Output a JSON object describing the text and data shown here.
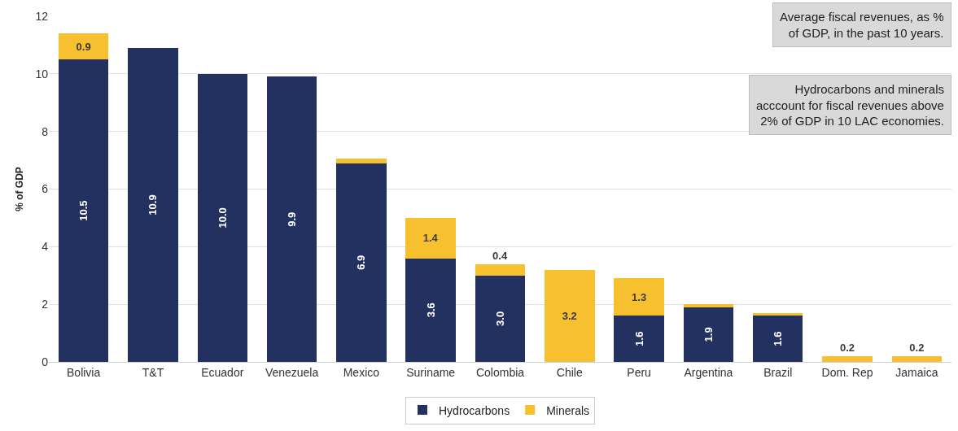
{
  "chart_data": {
    "type": "bar",
    "stacked": true,
    "ylabel": "% of GDP",
    "categories": [
      "Bolivia",
      "T&T",
      "Ecuador",
      "Venezuela",
      "Mexico",
      "Suriname",
      "Colombia",
      "Chile",
      "Peru",
      "Argentina",
      "Brazil",
      "Dom. Rep",
      "Jamaica"
    ],
    "series": [
      {
        "name": "Hydrocarbons",
        "color": "#22315f",
        "values": [
          10.5,
          10.9,
          10.0,
          9.9,
          6.9,
          3.6,
          3.0,
          null,
          1.6,
          1.9,
          1.6,
          null,
          null
        ],
        "value_labels": [
          "10.5",
          "10.9",
          "10.0",
          "9.9",
          "6.9",
          "3.6",
          "3.0",
          null,
          "1.6",
          "1.9",
          "1.6",
          null,
          null
        ]
      },
      {
        "name": "Minerals",
        "color": "#f6c02f",
        "values": [
          0.9,
          null,
          null,
          null,
          0.15,
          1.4,
          0.4,
          3.2,
          1.3,
          0.1,
          0.1,
          0.2,
          0.2
        ],
        "value_labels": [
          "0.9",
          null,
          null,
          null,
          null,
          "1.4",
          "0.4",
          "3.2",
          "1.3",
          null,
          null,
          "0.2",
          "0.2"
        ]
      }
    ],
    "ylim": [
      0,
      12
    ],
    "yticks": [
      0,
      2,
      4,
      6,
      8,
      10,
      12
    ],
    "grid": "y",
    "legend": "bottom",
    "annotations": [
      "Average fiscal revenues, as % of GDP, in the past 10 years.",
      "Hydrocarbons and minerals acccount for fiscal revenues above 2% of GDP in 10 LAC economies."
    ]
  }
}
